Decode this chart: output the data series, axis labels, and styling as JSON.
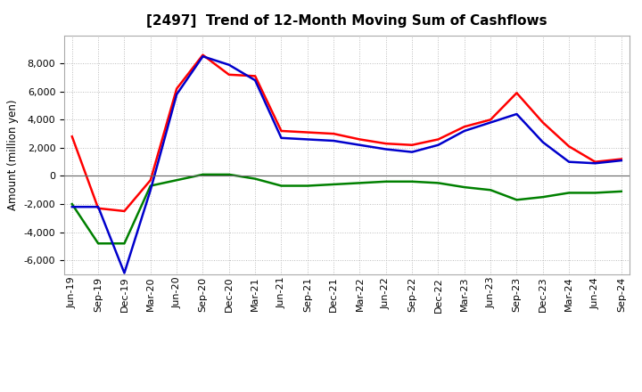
{
  "title": "[2497]  Trend of 12-Month Moving Sum of Cashflows",
  "ylabel": "Amount (million yen)",
  "x_labels": [
    "Jun-19",
    "Sep-19",
    "Dec-19",
    "Mar-20",
    "Jun-20",
    "Sep-20",
    "Dec-20",
    "Mar-21",
    "Jun-21",
    "Sep-21",
    "Dec-21",
    "Mar-22",
    "Jun-22",
    "Sep-22",
    "Dec-22",
    "Mar-23",
    "Jun-23",
    "Sep-23",
    "Dec-23",
    "Mar-24",
    "Jun-24",
    "Sep-24"
  ],
  "operating": [
    2800,
    -2300,
    -2500,
    -300,
    6200,
    8600,
    7200,
    7100,
    3200,
    3100,
    3000,
    2600,
    2300,
    2200,
    2600,
    3500,
    4000,
    5900,
    3800,
    2100,
    1000,
    1200
  ],
  "investing": [
    -2000,
    -4800,
    -4800,
    -700,
    -300,
    100,
    100,
    -200,
    -700,
    -700,
    -600,
    -500,
    -400,
    -400,
    -500,
    -800,
    -1000,
    -1700,
    -1500,
    -1200,
    -1200,
    -1100
  ],
  "free": [
    -2200,
    -2200,
    -6900,
    -1000,
    5800,
    8500,
    7900,
    6800,
    2700,
    2600,
    2500,
    2200,
    1900,
    1700,
    2200,
    3200,
    3800,
    4400,
    2400,
    1000,
    900,
    1100
  ],
  "operating_color": "#ff0000",
  "investing_color": "#008000",
  "free_color": "#0000cc",
  "ylim": [
    -7000,
    10000
  ],
  "yticks": [
    -6000,
    -4000,
    -2000,
    0,
    2000,
    4000,
    6000,
    8000
  ],
  "background_color": "#ffffff",
  "grid_color": "#bbbbbb",
  "title_fontsize": 11,
  "ylabel_fontsize": 8.5,
  "tick_fontsize": 8,
  "legend_fontsize": 8.5
}
